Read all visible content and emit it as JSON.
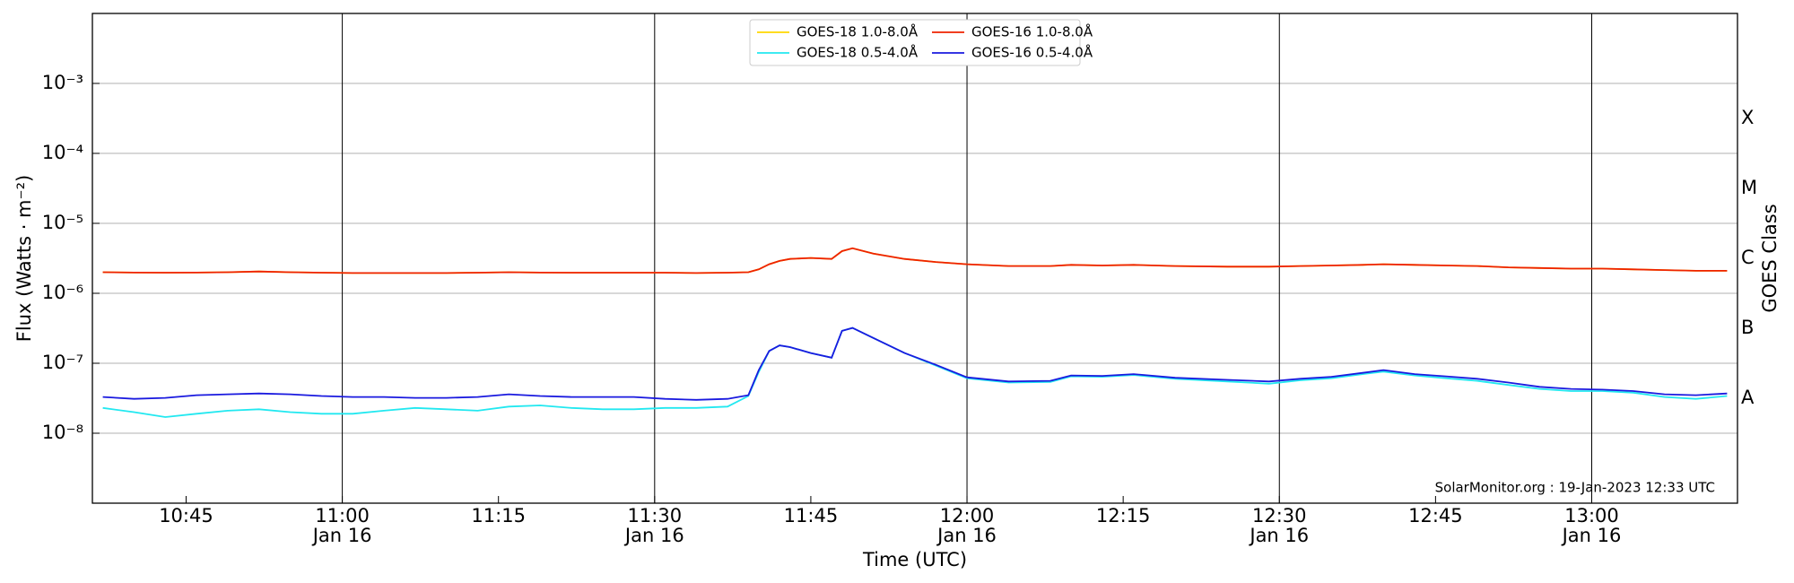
{
  "chart_data": {
    "type": "line",
    "xlabel": "Time (UTC)",
    "ylabel": "Flux (Watts · m⁻²)",
    "y2label": "GOES Class",
    "annotation": "SolarMonitor.org : 19-Jan-2023 12:33 UTC",
    "yscale": "log",
    "grid": true,
    "legend": "upper center",
    "xlim": [
      "10:36",
      "13:14"
    ],
    "xticks": [
      "10:45",
      "11:00",
      "11:15",
      "11:30",
      "11:45",
      "12:00",
      "12:15",
      "12:30",
      "12:45",
      "13:00"
    ],
    "xtick_dates": [
      null,
      "Jan 16",
      null,
      "Jan 16",
      null,
      "Jan 16",
      null,
      "Jan 16",
      null,
      "Jan 16"
    ],
    "ylim": [
      1e-09,
      0.01
    ],
    "yticks": [
      {
        "value": 1e-08,
        "label": "10⁻⁸"
      },
      {
        "value": 1e-07,
        "label": "10⁻⁷"
      },
      {
        "value": 1e-06,
        "label": "10⁻⁶"
      },
      {
        "value": 1e-05,
        "label": "10⁻⁵"
      },
      {
        "value": 0.0001,
        "label": "10⁻⁴"
      },
      {
        "value": 0.001,
        "label": "10⁻³"
      }
    ],
    "y2lim": [
      1e-09,
      0.01
    ],
    "y2ticks": [
      {
        "value": 3.16e-08,
        "label": "A"
      },
      {
        "value": 3.16e-07,
        "label": "B"
      },
      {
        "value": 3.16e-06,
        "label": "C"
      },
      {
        "value": 3.16e-05,
        "label": "M"
      },
      {
        "value": 0.000316,
        "label": "X"
      }
    ],
    "x": [
      "10:37",
      "10:40",
      "10:43",
      "10:46",
      "10:49",
      "10:52",
      "10:55",
      "10:58",
      "11:01",
      "11:04",
      "11:07",
      "11:10",
      "11:13",
      "11:16",
      "11:19",
      "11:22",
      "11:25",
      "11:28",
      "11:31",
      "11:34",
      "11:37",
      "11:39",
      "11:40",
      "11:41",
      "11:42",
      "11:43",
      "11:45",
      "11:47",
      "11:48",
      "11:49",
      "11:51",
      "11:54",
      "11:57",
      "12:00",
      "12:04",
      "12:08",
      "12:10",
      "12:13",
      "12:16",
      "12:20",
      "12:25",
      "12:29",
      "12:32",
      "12:35",
      "12:38",
      "12:40",
      "12:43",
      "12:46",
      "12:49",
      "12:52",
      "12:55",
      "12:58",
      "13:01",
      "13:04",
      "13:07",
      "13:10",
      "13:13"
    ],
    "series": [
      {
        "name": "GOES-18 1.0-8.0Å",
        "color": "#ffd700",
        "values": [
          2e-06,
          1.98e-06,
          1.97e-06,
          1.98e-06,
          2e-06,
          2.05e-06,
          2e-06,
          1.97e-06,
          1.95e-06,
          1.95e-06,
          1.95e-06,
          1.95e-06,
          1.97e-06,
          2e-06,
          1.98e-06,
          1.97e-06,
          1.97e-06,
          1.97e-06,
          1.97e-06,
          1.95e-06,
          1.97e-06,
          2e-06,
          2.2e-06,
          2.6e-06,
          2.9e-06,
          3.1e-06,
          3.2e-06,
          3.1e-06,
          4e-06,
          4.4e-06,
          3.7e-06,
          3.1e-06,
          2.8e-06,
          2.6e-06,
          2.45e-06,
          2.45e-06,
          2.55e-06,
          2.5e-06,
          2.55e-06,
          2.45e-06,
          2.4e-06,
          2.4e-06,
          2.45e-06,
          2.5e-06,
          2.55e-06,
          2.6e-06,
          2.55e-06,
          2.5e-06,
          2.45e-06,
          2.35e-06,
          2.3e-06,
          2.25e-06,
          2.25e-06,
          2.2e-06,
          2.15e-06,
          2.1e-06,
          2.1e-06
        ]
      },
      {
        "name": "GOES-18 0.5-4.0Å",
        "color": "#22e8f0",
        "values": [
          2.3e-08,
          2e-08,
          1.7e-08,
          1.9e-08,
          2.1e-08,
          2.2e-08,
          2e-08,
          1.9e-08,
          1.9e-08,
          2.1e-08,
          2.3e-08,
          2.2e-08,
          2.1e-08,
          2.4e-08,
          2.5e-08,
          2.3e-08,
          2.2e-08,
          2.2e-08,
          2.3e-08,
          2.3e-08,
          2.4e-08,
          3.4e-08,
          7.5e-08,
          1.5e-07,
          1.8e-07,
          1.7e-07,
          1.4e-07,
          1.2e-07,
          2.9e-07,
          3.2e-07,
          2.3e-07,
          1.4e-07,
          9.3e-08,
          6.1e-08,
          5.3e-08,
          5.4e-08,
          6.5e-08,
          6.4e-08,
          6.8e-08,
          6e-08,
          5.5e-08,
          5.1e-08,
          5.7e-08,
          6.1e-08,
          7e-08,
          7.6e-08,
          6.7e-08,
          6.1e-08,
          5.6e-08,
          4.9e-08,
          4.3e-08,
          4e-08,
          4e-08,
          3.8e-08,
          3.3e-08,
          3.1e-08,
          3.4e-08
        ]
      },
      {
        "name": "GOES-16 1.0-8.0Å",
        "color": "#ee2200",
        "values": [
          2e-06,
          1.98e-06,
          1.97e-06,
          1.98e-06,
          2e-06,
          2.05e-06,
          2e-06,
          1.97e-06,
          1.95e-06,
          1.95e-06,
          1.95e-06,
          1.95e-06,
          1.97e-06,
          2e-06,
          1.98e-06,
          1.97e-06,
          1.97e-06,
          1.97e-06,
          1.97e-06,
          1.95e-06,
          1.97e-06,
          2e-06,
          2.2e-06,
          2.6e-06,
          2.9e-06,
          3.1e-06,
          3.2e-06,
          3.1e-06,
          4e-06,
          4.4e-06,
          3.7e-06,
          3.1e-06,
          2.8e-06,
          2.6e-06,
          2.45e-06,
          2.45e-06,
          2.55e-06,
          2.5e-06,
          2.55e-06,
          2.45e-06,
          2.4e-06,
          2.4e-06,
          2.45e-06,
          2.5e-06,
          2.55e-06,
          2.6e-06,
          2.55e-06,
          2.5e-06,
          2.45e-06,
          2.35e-06,
          2.3e-06,
          2.25e-06,
          2.25e-06,
          2.2e-06,
          2.15e-06,
          2.1e-06,
          2.1e-06
        ]
      },
      {
        "name": "GOES-16 0.5-4.0Å",
        "color": "#1a1adf",
        "values": [
          3.3e-08,
          3.1e-08,
          3.2e-08,
          3.5e-08,
          3.6e-08,
          3.7e-08,
          3.6e-08,
          3.4e-08,
          3.3e-08,
          3.3e-08,
          3.2e-08,
          3.2e-08,
          3.3e-08,
          3.6e-08,
          3.4e-08,
          3.3e-08,
          3.3e-08,
          3.3e-08,
          3.1e-08,
          3e-08,
          3.1e-08,
          3.5e-08,
          8e-08,
          1.5e-07,
          1.8e-07,
          1.7e-07,
          1.4e-07,
          1.2e-07,
          2.9e-07,
          3.2e-07,
          2.3e-07,
          1.4e-07,
          9.5e-08,
          6.3e-08,
          5.5e-08,
          5.6e-08,
          6.7e-08,
          6.6e-08,
          7e-08,
          6.2e-08,
          5.8e-08,
          5.5e-08,
          6e-08,
          6.4e-08,
          7.3e-08,
          8e-08,
          7e-08,
          6.5e-08,
          6e-08,
          5.3e-08,
          4.6e-08,
          4.3e-08,
          4.2e-08,
          4e-08,
          3.6e-08,
          3.5e-08,
          3.7e-08
        ]
      }
    ]
  }
}
